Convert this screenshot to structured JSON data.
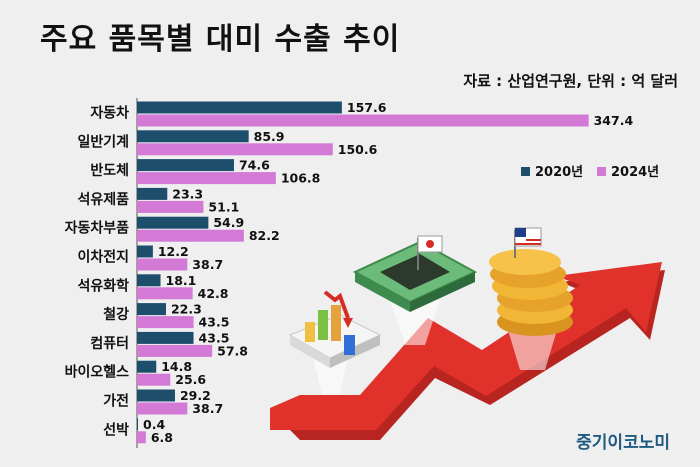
{
  "header": {
    "title": "주요 품목별 대미 수출 추이",
    "source": "자료 : 산업연구원, 단위 : 억 달러"
  },
  "brand": "중기이코노미",
  "colors": {
    "series_2020": "#1d4e6b",
    "series_2024": "#d37ad6",
    "arrow_red": "#e0312b",
    "background": "#efefef"
  },
  "chart_data": {
    "type": "bar",
    "orientation": "horizontal",
    "categories": [
      "자동차",
      "일반기계",
      "반도체",
      "석유제품",
      "자동차부품",
      "이차전지",
      "석유화학",
      "철강",
      "컴퓨터",
      "바이오헬스",
      "가전",
      "선박"
    ],
    "series": [
      {
        "name": "2020년",
        "values": [
          157.6,
          85.9,
          74.6,
          23.3,
          54.9,
          12.2,
          18.1,
          22.3,
          43.5,
          14.8,
          29.2,
          0.4
        ]
      },
      {
        "name": "2024년",
        "values": [
          347.4,
          150.6,
          106.8,
          51.1,
          82.2,
          38.7,
          42.8,
          43.5,
          57.8,
          25.6,
          38.7,
          6.8
        ]
      }
    ],
    "legend_position": "right",
    "grid": false
  }
}
